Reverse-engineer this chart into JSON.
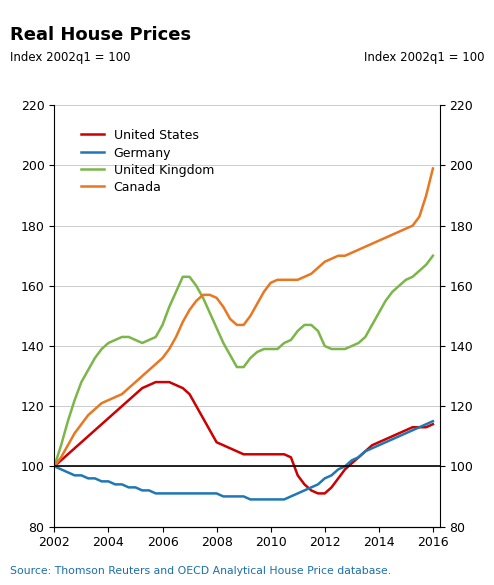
{
  "title": "Real House Prices",
  "ylabel_left": "Index 2002q1 = 100",
  "ylabel_right": "Index 2002q1 = 100",
  "source": "Source: Thomson Reuters and OECD Analytical House Price database.",
  "source_color": "#1a6fa8",
  "ylim": [
    80,
    220
  ],
  "yticks": [
    80,
    100,
    120,
    140,
    160,
    180,
    200,
    220
  ],
  "xlim_start": 2002.0,
  "xlim_end": 2016.25,
  "xticks": [
    2002,
    2004,
    2006,
    2008,
    2010,
    2012,
    2014,
    2016
  ],
  "series": {
    "United States": {
      "color": "#cc0000",
      "x": [
        2002.0,
        2002.25,
        2002.5,
        2002.75,
        2003.0,
        2003.25,
        2003.5,
        2003.75,
        2004.0,
        2004.25,
        2004.5,
        2004.75,
        2005.0,
        2005.25,
        2005.5,
        2005.75,
        2006.0,
        2006.25,
        2006.5,
        2006.75,
        2007.0,
        2007.25,
        2007.5,
        2007.75,
        2008.0,
        2008.25,
        2008.5,
        2008.75,
        2009.0,
        2009.25,
        2009.5,
        2009.75,
        2010.0,
        2010.25,
        2010.5,
        2010.75,
        2011.0,
        2011.25,
        2011.5,
        2011.75,
        2012.0,
        2012.25,
        2012.5,
        2012.75,
        2013.0,
        2013.25,
        2013.5,
        2013.75,
        2014.0,
        2014.25,
        2014.5,
        2014.75,
        2015.0,
        2015.25,
        2015.5,
        2015.75,
        2016.0
      ],
      "y": [
        100,
        102,
        104,
        106,
        108,
        110,
        112,
        114,
        116,
        118,
        120,
        122,
        124,
        126,
        127,
        128,
        128,
        128,
        127,
        126,
        124,
        120,
        116,
        112,
        108,
        107,
        106,
        105,
        104,
        104,
        104,
        104,
        104,
        104,
        104,
        103,
        97,
        94,
        92,
        91,
        91,
        93,
        96,
        99,
        101,
        103,
        105,
        107,
        108,
        109,
        110,
        111,
        112,
        113,
        113,
        113,
        114
      ]
    },
    "Germany": {
      "color": "#1f77b4",
      "x": [
        2002.0,
        2002.25,
        2002.5,
        2002.75,
        2003.0,
        2003.25,
        2003.5,
        2003.75,
        2004.0,
        2004.25,
        2004.5,
        2004.75,
        2005.0,
        2005.25,
        2005.5,
        2005.75,
        2006.0,
        2006.25,
        2006.5,
        2006.75,
        2007.0,
        2007.25,
        2007.5,
        2007.75,
        2008.0,
        2008.25,
        2008.5,
        2008.75,
        2009.0,
        2009.25,
        2009.5,
        2009.75,
        2010.0,
        2010.25,
        2010.5,
        2010.75,
        2011.0,
        2011.25,
        2011.5,
        2011.75,
        2012.0,
        2012.25,
        2012.5,
        2012.75,
        2013.0,
        2013.25,
        2013.5,
        2013.75,
        2014.0,
        2014.25,
        2014.5,
        2014.75,
        2015.0,
        2015.25,
        2015.5,
        2015.75,
        2016.0
      ],
      "y": [
        100,
        99,
        98,
        97,
        97,
        96,
        96,
        95,
        95,
        94,
        94,
        93,
        93,
        92,
        92,
        91,
        91,
        91,
        91,
        91,
        91,
        91,
        91,
        91,
        91,
        90,
        90,
        90,
        90,
        89,
        89,
        89,
        89,
        89,
        89,
        90,
        91,
        92,
        93,
        94,
        96,
        97,
        99,
        100,
        102,
        103,
        105,
        106,
        107,
        108,
        109,
        110,
        111,
        112,
        113,
        114,
        115
      ]
    },
    "United Kingdom": {
      "color": "#7ab648",
      "x": [
        2002.0,
        2002.25,
        2002.5,
        2002.75,
        2003.0,
        2003.25,
        2003.5,
        2003.75,
        2004.0,
        2004.25,
        2004.5,
        2004.75,
        2005.0,
        2005.25,
        2005.5,
        2005.75,
        2006.0,
        2006.25,
        2006.5,
        2006.75,
        2007.0,
        2007.25,
        2007.5,
        2007.75,
        2008.0,
        2008.25,
        2008.5,
        2008.75,
        2009.0,
        2009.25,
        2009.5,
        2009.75,
        2010.0,
        2010.25,
        2010.5,
        2010.75,
        2011.0,
        2011.25,
        2011.5,
        2011.75,
        2012.0,
        2012.25,
        2012.5,
        2012.75,
        2013.0,
        2013.25,
        2013.5,
        2013.75,
        2014.0,
        2014.25,
        2014.5,
        2014.75,
        2015.0,
        2015.25,
        2015.5,
        2015.75,
        2016.0
      ],
      "y": [
        100,
        107,
        115,
        122,
        128,
        132,
        136,
        139,
        141,
        142,
        143,
        143,
        142,
        141,
        142,
        143,
        147,
        153,
        158,
        163,
        163,
        160,
        156,
        151,
        146,
        141,
        137,
        133,
        133,
        136,
        138,
        139,
        139,
        139,
        141,
        142,
        145,
        147,
        147,
        145,
        140,
        139,
        139,
        139,
        140,
        141,
        143,
        147,
        151,
        155,
        158,
        160,
        162,
        163,
        165,
        167,
        170
      ]
    },
    "Canada": {
      "color": "#e87722",
      "x": [
        2002.0,
        2002.25,
        2002.5,
        2002.75,
        2003.0,
        2003.25,
        2003.5,
        2003.75,
        2004.0,
        2004.25,
        2004.5,
        2004.75,
        2005.0,
        2005.25,
        2005.5,
        2005.75,
        2006.0,
        2006.25,
        2006.5,
        2006.75,
        2007.0,
        2007.25,
        2007.5,
        2007.75,
        2008.0,
        2008.25,
        2008.5,
        2008.75,
        2009.0,
        2009.25,
        2009.5,
        2009.75,
        2010.0,
        2010.25,
        2010.5,
        2010.75,
        2011.0,
        2011.25,
        2011.5,
        2011.75,
        2012.0,
        2012.25,
        2012.5,
        2012.75,
        2013.0,
        2013.25,
        2013.5,
        2013.75,
        2014.0,
        2014.25,
        2014.5,
        2014.75,
        2015.0,
        2015.25,
        2015.5,
        2015.75,
        2016.0
      ],
      "y": [
        100,
        103,
        107,
        111,
        114,
        117,
        119,
        121,
        122,
        123,
        124,
        126,
        128,
        130,
        132,
        134,
        136,
        139,
        143,
        148,
        152,
        155,
        157,
        157,
        156,
        153,
        149,
        147,
        147,
        150,
        154,
        158,
        161,
        162,
        162,
        162,
        162,
        163,
        164,
        166,
        168,
        169,
        170,
        170,
        171,
        172,
        173,
        174,
        175,
        176,
        177,
        178,
        179,
        180,
        183,
        190,
        199
      ]
    }
  },
  "legend_order": [
    "United States",
    "Germany",
    "United Kingdom",
    "Canada"
  ],
  "hline_y": 100,
  "bg_color": "#ffffff",
  "grid_color": "#cccccc"
}
